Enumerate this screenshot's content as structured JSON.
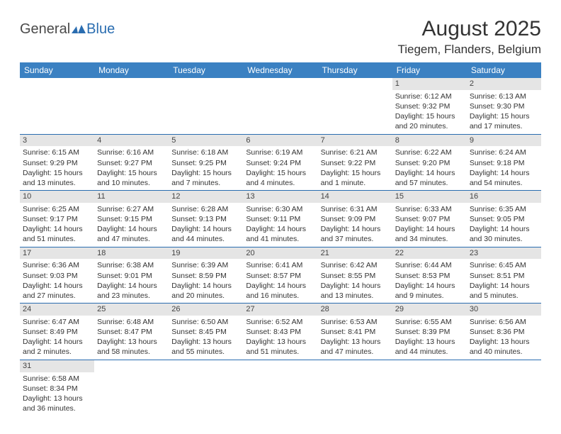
{
  "logo": {
    "part1": "General",
    "part2": "Blue"
  },
  "title": "August 2025",
  "location": "Tiegem, Flanders, Belgium",
  "colors": {
    "header_bg": "#3b81c2",
    "header_text": "#ffffff",
    "row_border": "#2a6db0",
    "daynum_bg": "#e5e5e5",
    "logo_accent": "#2a6db0"
  },
  "dayHeaders": [
    "Sunday",
    "Monday",
    "Tuesday",
    "Wednesday",
    "Thursday",
    "Friday",
    "Saturday"
  ],
  "weeks": [
    [
      null,
      null,
      null,
      null,
      null,
      {
        "n": "1",
        "sunrise": "6:12 AM",
        "sunset": "9:32 PM",
        "daylight": "15 hours and 20 minutes."
      },
      {
        "n": "2",
        "sunrise": "6:13 AM",
        "sunset": "9:30 PM",
        "daylight": "15 hours and 17 minutes."
      }
    ],
    [
      {
        "n": "3",
        "sunrise": "6:15 AM",
        "sunset": "9:29 PM",
        "daylight": "15 hours and 13 minutes."
      },
      {
        "n": "4",
        "sunrise": "6:16 AM",
        "sunset": "9:27 PM",
        "daylight": "15 hours and 10 minutes."
      },
      {
        "n": "5",
        "sunrise": "6:18 AM",
        "sunset": "9:25 PM",
        "daylight": "15 hours and 7 minutes."
      },
      {
        "n": "6",
        "sunrise": "6:19 AM",
        "sunset": "9:24 PM",
        "daylight": "15 hours and 4 minutes."
      },
      {
        "n": "7",
        "sunrise": "6:21 AM",
        "sunset": "9:22 PM",
        "daylight": "15 hours and 1 minute."
      },
      {
        "n": "8",
        "sunrise": "6:22 AM",
        "sunset": "9:20 PM",
        "daylight": "14 hours and 57 minutes."
      },
      {
        "n": "9",
        "sunrise": "6:24 AM",
        "sunset": "9:18 PM",
        "daylight": "14 hours and 54 minutes."
      }
    ],
    [
      {
        "n": "10",
        "sunrise": "6:25 AM",
        "sunset": "9:17 PM",
        "daylight": "14 hours and 51 minutes."
      },
      {
        "n": "11",
        "sunrise": "6:27 AM",
        "sunset": "9:15 PM",
        "daylight": "14 hours and 47 minutes."
      },
      {
        "n": "12",
        "sunrise": "6:28 AM",
        "sunset": "9:13 PM",
        "daylight": "14 hours and 44 minutes."
      },
      {
        "n": "13",
        "sunrise": "6:30 AM",
        "sunset": "9:11 PM",
        "daylight": "14 hours and 41 minutes."
      },
      {
        "n": "14",
        "sunrise": "6:31 AM",
        "sunset": "9:09 PM",
        "daylight": "14 hours and 37 minutes."
      },
      {
        "n": "15",
        "sunrise": "6:33 AM",
        "sunset": "9:07 PM",
        "daylight": "14 hours and 34 minutes."
      },
      {
        "n": "16",
        "sunrise": "6:35 AM",
        "sunset": "9:05 PM",
        "daylight": "14 hours and 30 minutes."
      }
    ],
    [
      {
        "n": "17",
        "sunrise": "6:36 AM",
        "sunset": "9:03 PM",
        "daylight": "14 hours and 27 minutes."
      },
      {
        "n": "18",
        "sunrise": "6:38 AM",
        "sunset": "9:01 PM",
        "daylight": "14 hours and 23 minutes."
      },
      {
        "n": "19",
        "sunrise": "6:39 AM",
        "sunset": "8:59 PM",
        "daylight": "14 hours and 20 minutes."
      },
      {
        "n": "20",
        "sunrise": "6:41 AM",
        "sunset": "8:57 PM",
        "daylight": "14 hours and 16 minutes."
      },
      {
        "n": "21",
        "sunrise": "6:42 AM",
        "sunset": "8:55 PM",
        "daylight": "14 hours and 13 minutes."
      },
      {
        "n": "22",
        "sunrise": "6:44 AM",
        "sunset": "8:53 PM",
        "daylight": "14 hours and 9 minutes."
      },
      {
        "n": "23",
        "sunrise": "6:45 AM",
        "sunset": "8:51 PM",
        "daylight": "14 hours and 5 minutes."
      }
    ],
    [
      {
        "n": "24",
        "sunrise": "6:47 AM",
        "sunset": "8:49 PM",
        "daylight": "14 hours and 2 minutes."
      },
      {
        "n": "25",
        "sunrise": "6:48 AM",
        "sunset": "8:47 PM",
        "daylight": "13 hours and 58 minutes."
      },
      {
        "n": "26",
        "sunrise": "6:50 AM",
        "sunset": "8:45 PM",
        "daylight": "13 hours and 55 minutes."
      },
      {
        "n": "27",
        "sunrise": "6:52 AM",
        "sunset": "8:43 PM",
        "daylight": "13 hours and 51 minutes."
      },
      {
        "n": "28",
        "sunrise": "6:53 AM",
        "sunset": "8:41 PM",
        "daylight": "13 hours and 47 minutes."
      },
      {
        "n": "29",
        "sunrise": "6:55 AM",
        "sunset": "8:39 PM",
        "daylight": "13 hours and 44 minutes."
      },
      {
        "n": "30",
        "sunrise": "6:56 AM",
        "sunset": "8:36 PM",
        "daylight": "13 hours and 40 minutes."
      }
    ],
    [
      {
        "n": "31",
        "sunrise": "6:58 AM",
        "sunset": "8:34 PM",
        "daylight": "13 hours and 36 minutes."
      },
      null,
      null,
      null,
      null,
      null,
      null
    ]
  ],
  "labels": {
    "sunrise": "Sunrise:",
    "sunset": "Sunset:",
    "daylight": "Daylight:"
  }
}
